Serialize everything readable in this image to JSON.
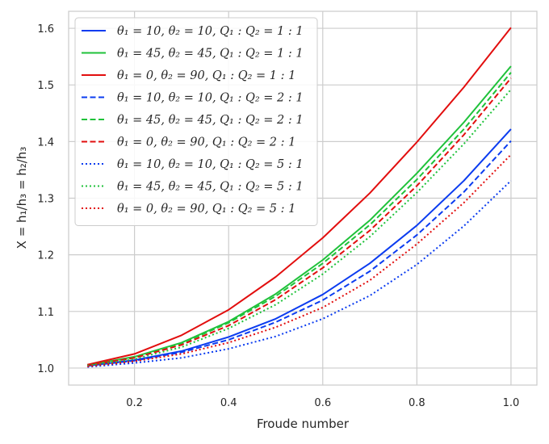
{
  "chart_data": {
    "type": "line",
    "xlabel": "Froude number",
    "ylabel": "X = h₁/h₃ = h₂/h₃",
    "xlim": [
      0.06,
      1.055
    ],
    "ylim": [
      0.97,
      1.63
    ],
    "xticks": [
      "0.2",
      "0.4",
      "0.6",
      "0.8",
      "1.0"
    ],
    "yticks": [
      "1.0",
      "1.1",
      "1.2",
      "1.3",
      "1.4",
      "1.5",
      "1.6"
    ],
    "grid": true,
    "legend_position": "top-left",
    "x": [
      0.1,
      0.2,
      0.3,
      0.4,
      0.5,
      0.6,
      0.7,
      0.8,
      0.9,
      1.0
    ],
    "series": [
      {
        "name": "θ₁ = 10, θ₂ = 10, Q₁ : Q₂ = 1 : 1",
        "color": "#0b3cf0",
        "dash": "solid",
        "values": [
          1.004,
          1.014,
          1.03,
          1.055,
          1.087,
          1.13,
          1.185,
          1.252,
          1.331,
          1.422
        ]
      },
      {
        "name": "θ₁ = 45, θ₂ = 45, Q₁ : Q₂ = 1 : 1",
        "color": "#1fc23a",
        "dash": "solid",
        "values": [
          1.005,
          1.02,
          1.045,
          1.082,
          1.131,
          1.191,
          1.261,
          1.344,
          1.434,
          1.533
        ]
      },
      {
        "name": "θ₁ = 0,   θ₂ = 90, Q₁ : Q₂ = 1 : 1",
        "color": "#e20e0e",
        "dash": "solid",
        "values": [
          1.006,
          1.025,
          1.058,
          1.103,
          1.161,
          1.23,
          1.309,
          1.399,
          1.496,
          1.601
        ]
      },
      {
        "name": "θ₁ = 10, θ₂ = 10, Q₁ : Q₂ = 2 : 1",
        "color": "#0b3cf0",
        "dash": "dashed",
        "values": [
          1.004,
          1.013,
          1.028,
          1.05,
          1.081,
          1.12,
          1.171,
          1.235,
          1.311,
          1.401
        ]
      },
      {
        "name": "θ₁ = 45, θ₂ = 45, Q₁ : Q₂ = 2 : 1",
        "color": "#1fc23a",
        "dash": "dashed",
        "values": [
          1.005,
          1.019,
          1.043,
          1.08,
          1.127,
          1.185,
          1.253,
          1.333,
          1.422,
          1.522
        ]
      },
      {
        "name": "θ₁ = 0,   θ₂ = 90, Q₁ : Q₂ = 2 : 1",
        "color": "#e20e0e",
        "dash": "dashed",
        "values": [
          1.005,
          1.018,
          1.041,
          1.075,
          1.121,
          1.177,
          1.243,
          1.322,
          1.412,
          1.512
        ]
      },
      {
        "name": "θ₁ = 10, θ₂ = 10, Q₁ : Q₂ = 5 : 1",
        "color": "#0b3cf0",
        "dash": "dotted",
        "values": [
          1.002,
          1.009,
          1.018,
          1.034,
          1.056,
          1.087,
          1.128,
          1.183,
          1.251,
          1.331
        ]
      },
      {
        "name": "θ₁ = 45, θ₂ = 45, Q₁ : Q₂ = 5 : 1",
        "color": "#1fc23a",
        "dash": "dotted",
        "values": [
          1.004,
          1.016,
          1.037,
          1.07,
          1.112,
          1.166,
          1.232,
          1.31,
          1.396,
          1.492
        ]
      },
      {
        "name": "θ₁ = 0,   θ₂ = 90, Q₁ : Q₂ = 5 : 1",
        "color": "#e20e0e",
        "dash": "dotted",
        "values": [
          1.003,
          1.012,
          1.025,
          1.045,
          1.072,
          1.107,
          1.155,
          1.219,
          1.292,
          1.377
        ]
      }
    ]
  }
}
